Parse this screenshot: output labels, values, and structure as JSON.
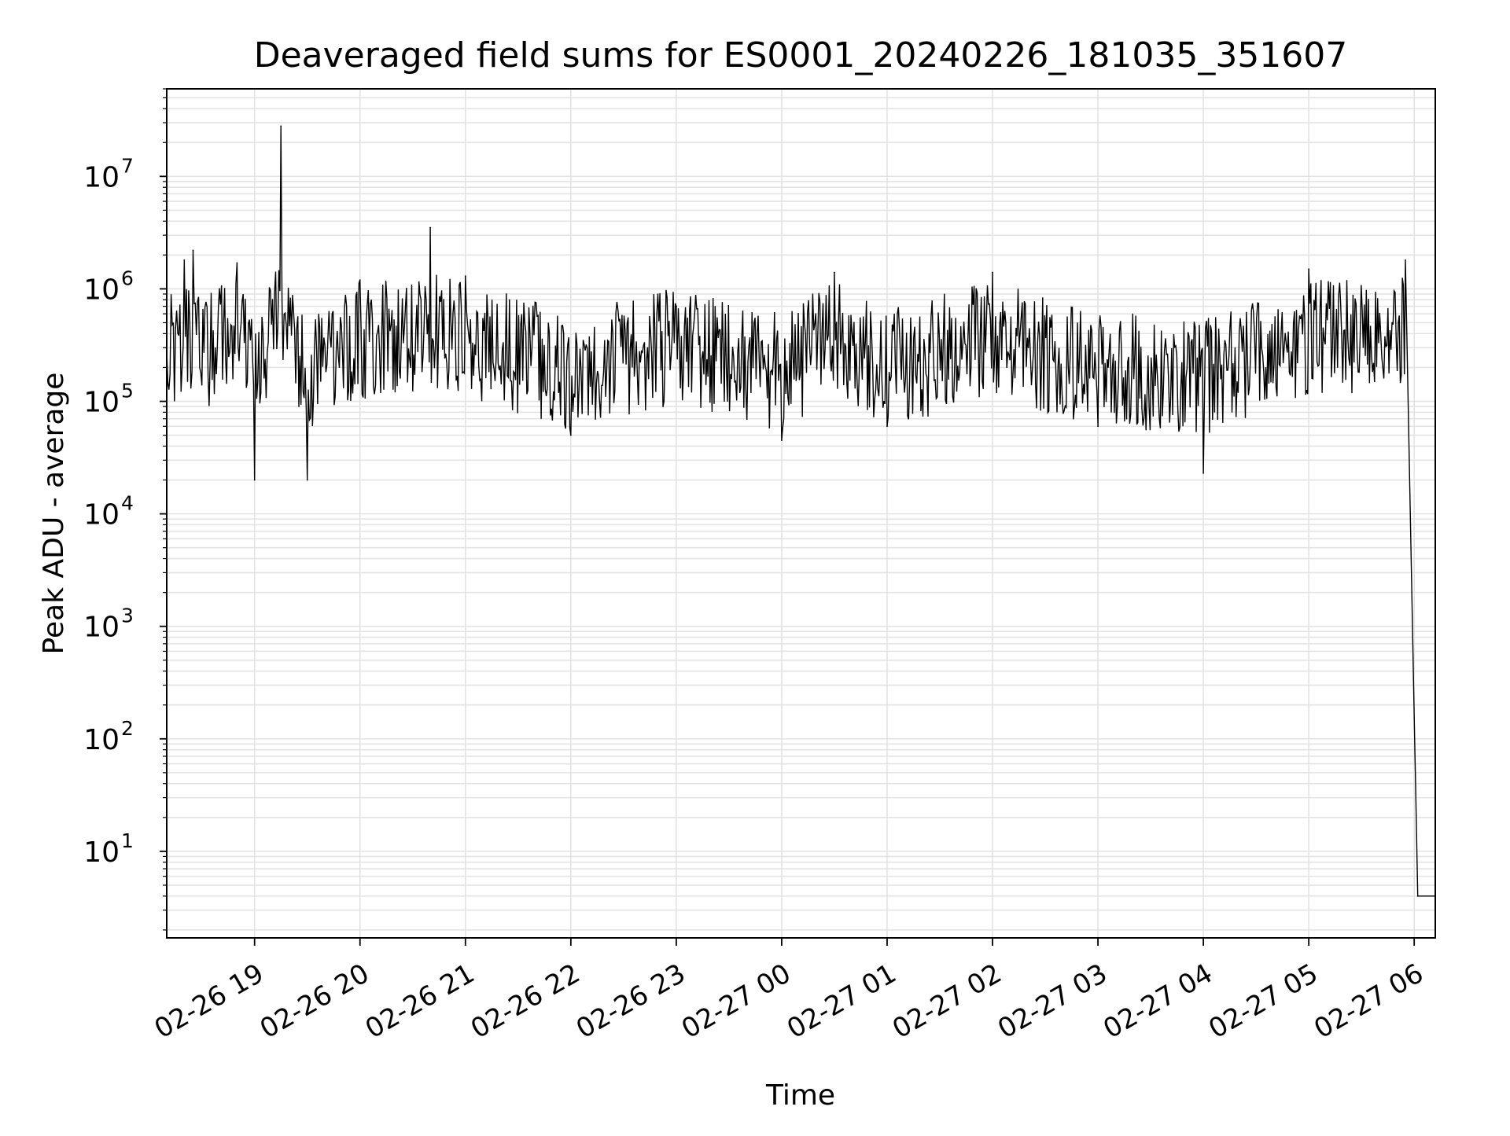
{
  "chart_data": {
    "type": "line",
    "title": "Deaveraged field sums for ES0001_20240226_181035_351607",
    "xlabel": "Time",
    "ylabel": "Peak ADU - average",
    "yscale": "log",
    "ylim": [
      1.7,
      60000000
    ],
    "xlim": [
      "02-26 18:10",
      "02-27 06:12"
    ],
    "grid": "both",
    "line_color": "#000000",
    "grid_color": "#e3e3e3",
    "xticks": [
      "02-26 19",
      "02-26 20",
      "02-26 21",
      "02-26 22",
      "02-26 23",
      "02-27 00",
      "02-27 01",
      "02-27 02",
      "02-27 03",
      "02-27 04",
      "02-27 05",
      "02-27 06"
    ],
    "yticks": [
      {
        "value": 10,
        "label": "10",
        "exp": "1"
      },
      {
        "value": 100,
        "label": "10",
        "exp": "2"
      },
      {
        "value": 1000,
        "label": "10",
        "exp": "3"
      },
      {
        "value": 10000,
        "label": "10",
        "exp": "4"
      },
      {
        "value": 100000,
        "label": "10",
        "exp": "5"
      },
      {
        "value": 1000000,
        "label": "10",
        "exp": "6"
      },
      {
        "value": 10000000,
        "label": "10",
        "exp": "7"
      }
    ],
    "series": [
      {
        "values": [
          {
            "x": "02-26 18:10",
            "y": 280000
          },
          {
            "x": "02-26 18:15",
            "y": 450000
          },
          {
            "x": "02-26 18:20",
            "y": 1800000
          },
          {
            "x": "02-26 18:25",
            "y": 2200000
          },
          {
            "x": "02-26 18:30",
            "y": 140000
          },
          {
            "x": "02-26 18:40",
            "y": 1000000
          },
          {
            "x": "02-26 18:50",
            "y": 1700000
          },
          {
            "x": "02-26 19:00",
            "y": 20000
          },
          {
            "x": "02-26 19:15",
            "y": 28000000
          },
          {
            "x": "02-26 19:30",
            "y": 20000
          },
          {
            "x": "02-26 20:00",
            "y": 1200000
          },
          {
            "x": "02-26 20:40",
            "y": 3500000
          },
          {
            "x": "02-26 21:00",
            "y": 1300000
          },
          {
            "x": "02-26 22:00",
            "y": 50000
          },
          {
            "x": "02-26 23:00",
            "y": 700000
          },
          {
            "x": "02-27 00:00",
            "y": 45000
          },
          {
            "x": "02-27 00:30",
            "y": 1400000
          },
          {
            "x": "02-27 01:00",
            "y": 60000
          },
          {
            "x": "02-27 02:00",
            "y": 1400000
          },
          {
            "x": "02-27 03:00",
            "y": 60000
          },
          {
            "x": "02-27 04:00",
            "y": 23000
          },
          {
            "x": "02-27 05:00",
            "y": 1500000
          },
          {
            "x": "02-27 05:55",
            "y": 1800000
          },
          {
            "x": "02-27 06:02",
            "y": 4
          },
          {
            "x": "02-27 06:12",
            "y": 4
          }
        ]
      }
    ]
  }
}
